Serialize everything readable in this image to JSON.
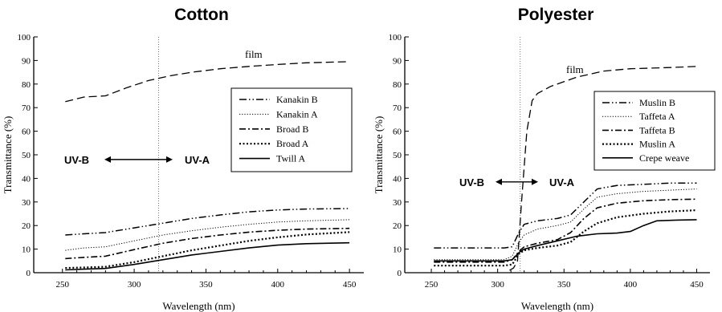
{
  "chart_data": [
    {
      "type": "line",
      "title": "Cotton",
      "xlabel": "Wavelength (nm)",
      "ylabel": "Transmittance (%)",
      "xlim": [
        230,
        460
      ],
      "ylim": [
        0,
        100
      ],
      "xticks": [
        250,
        300,
        350,
        400,
        450
      ],
      "yticks": [
        0,
        10,
        20,
        30,
        40,
        50,
        60,
        70,
        80,
        90,
        100
      ],
      "grid": false,
      "legend_position": "right",
      "divider_x": 317,
      "uv_labels": {
        "left": "UV-B",
        "right": "UV-A",
        "y": 48
      },
      "series": [
        {
          "name": "film",
          "style": "film",
          "color": "#000000",
          "label_on_chart": true,
          "x": [
            252,
            265,
            280,
            295,
            310,
            325,
            340,
            360,
            380,
            400,
            420,
            450
          ],
          "y": [
            72.5,
            74.5,
            75,
            78.5,
            81.5,
            83.5,
            85,
            86.5,
            87.5,
            88.3,
            89,
            89.5
          ]
        },
        {
          "name": "Kanakin B",
          "style": "dash-dot-dot",
          "color": "#000000",
          "x": [
            252,
            265,
            280,
            300,
            320,
            340,
            360,
            380,
            400,
            420,
            450
          ],
          "y": [
            16,
            16.5,
            17,
            19,
            21,
            23,
            24.5,
            25.8,
            26.6,
            27,
            27.2
          ]
        },
        {
          "name": "Kanakin A",
          "style": "dotted-fine",
          "color": "#000000",
          "x": [
            252,
            265,
            280,
            300,
            320,
            340,
            360,
            380,
            400,
            420,
            450
          ],
          "y": [
            9.5,
            10.5,
            11,
            13.5,
            16,
            17.8,
            19.3,
            20.5,
            21.5,
            22,
            22.5
          ]
        },
        {
          "name": "Broad B",
          "style": "dash-dot",
          "color": "#000000",
          "x": [
            252,
            265,
            280,
            300,
            320,
            340,
            360,
            380,
            400,
            420,
            450
          ],
          "y": [
            6,
            6.5,
            7,
            9.8,
            12.5,
            14.5,
            16,
            17.2,
            18,
            18.5,
            18.8
          ]
        },
        {
          "name": "Broad A",
          "style": "dotted-bold",
          "color": "#000000",
          "x": [
            252,
            265,
            280,
            300,
            320,
            340,
            360,
            380,
            400,
            420,
            450
          ],
          "y": [
            2,
            2.2,
            2.5,
            4.5,
            7,
            9.5,
            11.5,
            13.5,
            15,
            16.2,
            17.2
          ]
        },
        {
          "name": "Twill A",
          "style": "solid",
          "color": "#000000",
          "x": [
            252,
            265,
            280,
            300,
            320,
            340,
            360,
            380,
            400,
            420,
            450
          ],
          "y": [
            1.2,
            1.5,
            1.8,
            3.5,
            5.5,
            7.5,
            9,
            10.5,
            11.7,
            12.3,
            12.7
          ]
        }
      ]
    },
    {
      "type": "line",
      "title": "Polyester",
      "xlabel": "Wavelength (nm)",
      "ylabel": "Transmittance (%)",
      "xlim": [
        230,
        460
      ],
      "ylim": [
        0,
        100
      ],
      "xticks": [
        250,
        300,
        350,
        400,
        450
      ],
      "yticks": [
        0,
        10,
        20,
        30,
        40,
        50,
        60,
        70,
        80,
        90,
        100
      ],
      "grid": false,
      "legend_position": "right",
      "divider_x": 317,
      "uv_labels": {
        "left": "UV-B",
        "right": "UV-A",
        "y": 38.5
      },
      "series": [
        {
          "name": "film",
          "style": "film",
          "color": "#000000",
          "label_on_chart": true,
          "x": [
            309,
            312,
            315,
            318,
            322,
            326,
            330,
            340,
            360,
            380,
            400,
            430,
            450
          ],
          "y": [
            1,
            2,
            5,
            30,
            60,
            73,
            76,
            79,
            83,
            85.5,
            86.5,
            87,
            87.5
          ]
        },
        {
          "name": "Muslin B",
          "style": "dash-dot-dot",
          "color": "#000000",
          "x": [
            252,
            280,
            305,
            311,
            316,
            320,
            330,
            345,
            355,
            365,
            375,
            390,
            410,
            430,
            450
          ],
          "y": [
            10.5,
            10.5,
            10.5,
            11,
            17,
            20.5,
            22,
            23,
            24.5,
            30,
            35.5,
            37,
            37.5,
            38,
            38
          ]
        },
        {
          "name": "Taffeta A",
          "style": "dotted-fine",
          "color": "#000000",
          "x": [
            252,
            280,
            305,
            311,
            316,
            320,
            330,
            345,
            355,
            365,
            375,
            390,
            410,
            430,
            450
          ],
          "y": [
            5.5,
            5.5,
            5.5,
            7,
            13,
            16,
            18.5,
            20,
            21.5,
            27,
            32,
            33.5,
            34.5,
            35,
            35.5
          ]
        },
        {
          "name": "Taffeta B",
          "style": "dash-dot",
          "color": "#000000",
          "x": [
            252,
            280,
            305,
            311,
            316,
            320,
            330,
            345,
            355,
            365,
            375,
            390,
            410,
            430,
            450
          ],
          "y": [
            4.5,
            4.5,
            4.5,
            5.5,
            9,
            11,
            12.5,
            14,
            17,
            23,
            27.5,
            29.5,
            30.5,
            31,
            31.2
          ]
        },
        {
          "name": "Muslin A",
          "style": "dotted-bold",
          "color": "#000000",
          "x": [
            252,
            280,
            305,
            311,
            316,
            320,
            330,
            345,
            355,
            365,
            375,
            390,
            410,
            430,
            450
          ],
          "y": [
            3,
            3,
            3,
            3.5,
            8,
            9.5,
            10.5,
            11.5,
            13,
            17.5,
            21,
            23.5,
            25,
            26,
            26.5
          ]
        },
        {
          "name": "Crepe weave",
          "style": "solid",
          "color": "#000000",
          "x": [
            252,
            280,
            305,
            311,
            316,
            320,
            330,
            345,
            360,
            375,
            390,
            400,
            410,
            420,
            435,
            450
          ],
          "y": [
            5,
            5,
            5,
            5.5,
            8.5,
            10,
            11.5,
            13.5,
            15.5,
            16.5,
            16.8,
            17.5,
            20,
            22,
            22.3,
            22.5
          ]
        }
      ]
    }
  ]
}
